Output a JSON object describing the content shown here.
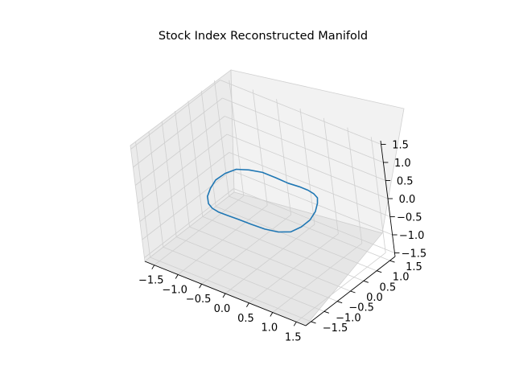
{
  "chart_data": {
    "type": "line",
    "projection": "3d",
    "title": "Stock Index Reconstructed Manifold",
    "xlabel": "",
    "ylabel": "",
    "zlabel": "",
    "xlim": [
      -1.7,
      1.7
    ],
    "ylim": [
      -1.7,
      1.7
    ],
    "zlim": [
      -1.6,
      1.6
    ],
    "x_ticks": [
      "−1.5",
      "−1.0",
      "−0.5",
      "0.0",
      "0.5",
      "1.0",
      "1.5"
    ],
    "y_ticks": [
      "−1.5",
      "−1.0",
      "−0.5",
      "0.0",
      "0.5",
      "1.0",
      "1.5"
    ],
    "z_ticks": [
      "−1.5",
      "−1.0",
      "−0.5",
      "0.0",
      "0.5",
      "1.0",
      "1.5"
    ],
    "grid": true,
    "line_color": "#1f77b4",
    "series": [
      {
        "description_shape": "noisy ring",
        "points": [
          [
            1.0,
            0.0,
            0.0
          ],
          [
            0.98,
            0.25,
            0.08
          ],
          [
            0.91,
            0.47,
            0.15
          ],
          [
            0.79,
            0.68,
            0.12
          ],
          [
            0.62,
            0.84,
            0.05
          ],
          [
            0.42,
            0.96,
            -0.02
          ],
          [
            0.2,
            1.03,
            -0.08
          ],
          [
            -0.04,
            1.02,
            -0.1
          ],
          [
            -0.27,
            0.98,
            -0.05
          ],
          [
            -0.49,
            0.88,
            0.04
          ],
          [
            -0.68,
            0.72,
            0.1
          ],
          [
            -0.84,
            0.53,
            0.14
          ],
          [
            -0.95,
            0.3,
            0.1
          ],
          [
            -1.02,
            0.05,
            0.02
          ],
          [
            -1.0,
            -0.2,
            -0.06
          ],
          [
            -0.94,
            -0.43,
            -0.12
          ],
          [
            -0.81,
            -0.63,
            -0.14
          ],
          [
            -0.63,
            -0.8,
            -0.08
          ],
          [
            -0.42,
            -0.93,
            0.0
          ],
          [
            -0.19,
            -1.0,
            0.07
          ],
          [
            0.06,
            -1.02,
            0.1
          ],
          [
            0.3,
            -0.97,
            0.06
          ],
          [
            0.52,
            -0.86,
            -0.02
          ],
          [
            0.71,
            -0.7,
            -0.09
          ],
          [
            0.86,
            -0.5,
            -0.12
          ],
          [
            0.96,
            -0.27,
            -0.06
          ],
          [
            1.0,
            0.0,
            0.0
          ]
        ]
      }
    ]
  }
}
